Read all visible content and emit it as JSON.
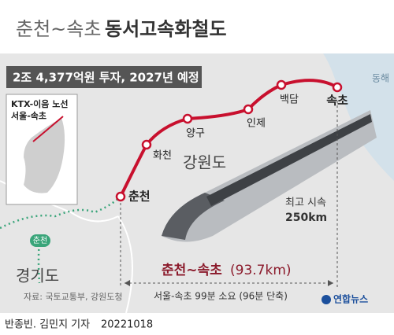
{
  "title": {
    "light": "춘천~속초",
    "bold": "동서고속화철도"
  },
  "budget": "2조 4,377억원 투자, 2027년 예정",
  "inset": {
    "line": "KTX-이음 노선",
    "route": "서울-속초"
  },
  "stations": [
    "춘천",
    "화천",
    "양구",
    "인제",
    "백담",
    "속초"
  ],
  "regions": {
    "east_sea": "동해",
    "gangwon": "강원도",
    "gyeonggi": "경기도",
    "line_label": "춘천"
  },
  "speed": {
    "label": "최고 시속",
    "value": "250km"
  },
  "distance": {
    "route": "춘천~속초",
    "length": "(93.7km)"
  },
  "travel_time": "서울-속초 99분 소요 (96분 단축)",
  "source": "자료: 국토교통부, 강원도청",
  "logo": "연합뉴스",
  "footer": {
    "reporters": "반종빈. 김민지 기자",
    "date": "20221018"
  }
}
